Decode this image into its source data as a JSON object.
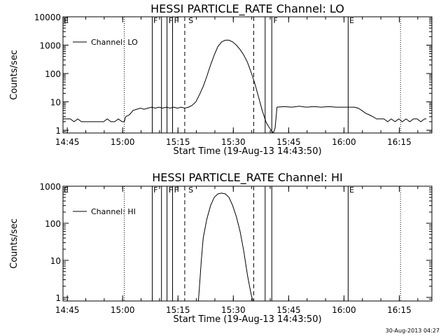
{
  "footer": {
    "timestamp": "30-Aug-2013 04:27"
  },
  "chart_data": [
    {
      "type": "line",
      "title": "HESSI PARTICLE_RATE Channel: LO",
      "xlabel": "Start Time (19-Aug-13 14:43:50)",
      "ylabel": "Counts/sec",
      "yscale": "log",
      "x_unit": "minutes after 14:43:50",
      "xlim": [
        0,
        100
      ],
      "ylim": [
        0.8,
        10000
      ],
      "x_ticks": [
        "14:45",
        "15:00",
        "15:15",
        "15:30",
        "15:45",
        "16:00",
        "16:15"
      ],
      "x_tick_positions": [
        1.17,
        16.17,
        31.17,
        46.17,
        61.17,
        76.17,
        91.17
      ],
      "y_ticks": [
        "1",
        "10",
        "100",
        "1000",
        "10000"
      ],
      "y_tick_values": [
        1,
        10,
        100,
        1000,
        10000
      ],
      "legend": {
        "label": "Channel: LO",
        "position": "top-left"
      },
      "series": [
        {
          "name": "Channel: LO",
          "x": [
            0,
            2,
            3,
            4,
            5,
            6,
            7,
            8,
            9,
            10,
            11,
            12,
            13,
            14,
            15,
            16,
            16.6,
            17,
            18,
            19,
            20,
            21,
            22,
            23,
            24,
            25,
            26,
            27,
            28,
            29,
            30,
            31,
            32,
            33,
            34,
            35,
            36,
            37,
            38,
            39,
            40,
            41,
            42,
            43,
            44,
            45,
            46,
            47,
            48,
            49,
            50,
            51,
            52,
            53,
            54,
            55,
            55.5,
            56,
            57,
            57.5,
            58,
            60,
            62,
            64,
            66,
            68,
            70,
            72,
            74,
            76,
            77,
            78,
            79,
            80,
            81,
            82,
            83,
            84,
            85,
            86,
            87,
            88,
            89,
            90,
            91,
            92,
            93,
            94,
            95,
            96,
            97,
            98,
            98.5
          ],
          "y": [
            2.5,
            2.5,
            2.0,
            2.5,
            2.0,
            2.0,
            2.0,
            2.0,
            2.0,
            2.0,
            2.0,
            2.5,
            2.0,
            2.0,
            2.5,
            2.0,
            2.0,
            3.0,
            3.5,
            5.0,
            5.5,
            6.0,
            5.5,
            6.0,
            6.5,
            6.0,
            6.5,
            6.0,
            6.5,
            6.0,
            6.5,
            6.0,
            6.5,
            6.0,
            6.5,
            7.5,
            10,
            18,
            35,
            80,
            200,
            450,
            900,
            1300,
            1500,
            1500,
            1300,
            1000,
            700,
            450,
            250,
            110,
            45,
            15,
            5,
            2,
            1.5,
            1.2,
            0.8,
            1.2,
            6.5,
            6.8,
            6.5,
            7.0,
            6.5,
            6.8,
            6.5,
            6.8,
            6.5,
            6.5,
            6.5,
            6.5,
            6.5,
            6.0,
            5.0,
            4.0,
            3.5,
            3.0,
            2.5,
            2.5,
            2.5,
            2.0,
            2.5,
            2.0,
            2.5,
            2.0,
            2.5,
            2.0,
            2.5,
            2.5,
            2.0,
            2.5,
            2.5
          ]
        }
      ],
      "markers": {
        "solid": [
          24.2,
          26.7,
          28.2,
          29.7,
          54.8,
          56.6,
          77.3
        ],
        "dashed": [
          33.0,
          51.7
        ],
        "dotted": [
          16.6,
          91.5
        ],
        "letters": [
          {
            "text": "E",
            "x": 0.2
          },
          {
            "text": "F",
            "x": 24.5
          },
          {
            "text": "F",
            "x": 28.6
          },
          {
            "text": "F",
            "x": 30.1
          },
          {
            "text": "S",
            "x": 34.0
          },
          {
            "text": "F",
            "x": 57.0
          },
          {
            "text": "E",
            "x": 77.6
          }
        ]
      }
    },
    {
      "type": "line",
      "title": "HESSI PARTICLE_RATE Channel: HI",
      "xlabel": "Start Time (19-Aug-13 14:43:50)",
      "ylabel": "Counts/sec",
      "yscale": "log",
      "x_unit": "minutes after 14:43:50",
      "xlim": [
        0,
        100
      ],
      "ylim": [
        0.8,
        1000
      ],
      "x_ticks": [
        "14:45",
        "15:00",
        "15:15",
        "15:30",
        "15:45",
        "16:00",
        "16:15"
      ],
      "x_tick_positions": [
        1.17,
        16.17,
        31.17,
        46.17,
        61.17,
        76.17,
        91.17
      ],
      "y_ticks": [
        "1",
        "10",
        "100",
        "1000"
      ],
      "y_tick_values": [
        1,
        10,
        100,
        1000
      ],
      "legend": {
        "label": "Channel: HI",
        "position": "top-left"
      },
      "series": [
        {
          "name": "Channel: HI",
          "x": [
            36.7,
            37,
            37.5,
            38,
            39,
            40,
            41,
            42,
            43,
            44,
            45,
            46,
            47,
            48,
            49,
            50,
            51,
            51.5
          ],
          "y": [
            0.8,
            2,
            10,
            40,
            130,
            300,
            500,
            620,
            650,
            620,
            500,
            300,
            150,
            60,
            18,
            4,
            1.2,
            0.8
          ]
        }
      ],
      "markers": {
        "solid": [
          24.2,
          26.7,
          28.2,
          29.7,
          54.8,
          56.6,
          77.3
        ],
        "dashed": [
          33.0,
          51.7
        ],
        "dotted": [
          16.6,
          91.5
        ],
        "letters": [
          {
            "text": "E",
            "x": 0.2
          },
          {
            "text": "F",
            "x": 24.5
          },
          {
            "text": "F",
            "x": 28.6
          },
          {
            "text": "F",
            "x": 30.1
          },
          {
            "text": "S",
            "x": 34.0
          },
          {
            "text": "E",
            "x": 77.6
          }
        ]
      }
    }
  ]
}
